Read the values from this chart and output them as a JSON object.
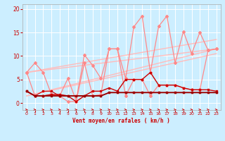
{
  "bg_color": "#cceeff",
  "grid_color": "#ffffff",
  "xlabel": "Vent moyen/en rafales ( km/h )",
  "xlabel_color": "#cc0000",
  "tick_color": "#cc0000",
  "ylim": [
    -1.5,
    21
  ],
  "xlim": [
    -0.5,
    23.5
  ],
  "yticks": [
    0,
    5,
    10,
    15,
    20
  ],
  "xticks": [
    0,
    1,
    2,
    3,
    4,
    5,
    6,
    7,
    8,
    9,
    10,
    11,
    12,
    13,
    14,
    15,
    16,
    17,
    18,
    19,
    20,
    21,
    22,
    23
  ],
  "trend_lines": [
    {
      "x": [
        0,
        23
      ],
      "y": [
        6.5,
        13.5
      ]
    },
    {
      "x": [
        0,
        23
      ],
      "y": [
        6.5,
        11.5
      ]
    },
    {
      "x": [
        0,
        23
      ],
      "y": [
        1.5,
        11.5
      ]
    },
    {
      "x": [
        0,
        23
      ],
      "y": [
        1.5,
        10.5
      ]
    }
  ],
  "trend_color": "#ffbbbb",
  "trend_lw": 1.0,
  "line_pink1_x": [
    0,
    1,
    2,
    3,
    4,
    5,
    6,
    7,
    8,
    9,
    10,
    11,
    12,
    13,
    14,
    15,
    16,
    17,
    18,
    19,
    20,
    21,
    22,
    23
  ],
  "line_pink1_y": [
    6.5,
    8.5,
    6.5,
    1.8,
    1.5,
    5.2,
    0.5,
    10.2,
    8.0,
    5.2,
    11.5,
    11.5,
    5.2,
    16.2,
    18.5,
    6.5,
    16.3,
    18.5,
    8.5,
    15.2,
    10.5,
    15.0,
    11.2,
    11.5
  ],
  "line_pink1_color": "#ff8888",
  "line_pink1_lw": 0.9,
  "line_pink2_x": [
    0,
    1,
    2,
    3,
    4,
    5,
    6,
    7,
    8,
    9,
    10,
    11,
    12,
    13,
    14,
    15,
    16,
    17,
    18,
    19,
    20,
    21,
    22,
    23
  ],
  "line_pink2_y": [
    6.5,
    1.5,
    1.5,
    1.8,
    1.5,
    0.3,
    0.3,
    8.5,
    1.5,
    1.8,
    11.5,
    11.5,
    1.5,
    5.0,
    5.0,
    1.5,
    3.8,
    3.8,
    3.8,
    3.2,
    2.8,
    2.8,
    11.2,
    11.5
  ],
  "line_pink2_color": "#ff8888",
  "line_pink2_lw": 0.9,
  "line_red1_x": [
    0,
    1,
    2,
    3,
    4,
    5,
    6,
    7,
    8,
    9,
    10,
    11,
    12,
    13,
    14,
    15,
    16,
    17,
    18,
    19,
    20,
    21,
    22,
    23
  ],
  "line_red1_y": [
    2.5,
    1.5,
    1.5,
    1.8,
    1.8,
    1.5,
    0.3,
    1.5,
    2.5,
    2.5,
    3.2,
    2.5,
    5.0,
    5.0,
    5.0,
    6.5,
    3.8,
    3.8,
    3.8,
    3.2,
    2.8,
    2.8,
    2.8,
    2.5
  ],
  "line_red1_color": "#cc0000",
  "line_red1_lw": 1.0,
  "line_red2_x": [
    0,
    1,
    2,
    3,
    4,
    5,
    6,
    7,
    8,
    9,
    10,
    11,
    12,
    13,
    14,
    15,
    16,
    17,
    18,
    19,
    20,
    21,
    22,
    23
  ],
  "line_red2_y": [
    2.5,
    1.5,
    1.5,
    1.5,
    1.5,
    1.5,
    1.5,
    1.5,
    1.5,
    1.5,
    2.2,
    2.2,
    2.2,
    2.2,
    2.2,
    2.2,
    2.2,
    2.2,
    2.2,
    2.2,
    2.2,
    2.2,
    2.2,
    2.2
  ],
  "line_red2_color": "#990000",
  "line_red2_lw": 1.3,
  "line_red3_x": [
    0,
    1,
    2,
    3,
    4,
    5,
    6,
    7,
    8,
    9,
    10,
    11,
    12,
    13,
    14,
    15,
    16,
    17,
    18,
    19,
    20,
    21,
    22,
    23
  ],
  "line_red3_y": [
    2.5,
    1.5,
    2.5,
    2.5,
    1.5,
    1.5,
    1.5,
    1.5,
    1.5,
    1.5,
    2.2,
    2.2,
    2.2,
    2.2,
    2.2,
    2.2,
    2.2,
    2.2,
    2.2,
    2.2,
    2.2,
    2.2,
    2.2,
    2.2
  ],
  "line_red3_color": "#cc0000",
  "line_red3_lw": 0.8,
  "marker_size": 2.0,
  "marker_shape": "D"
}
